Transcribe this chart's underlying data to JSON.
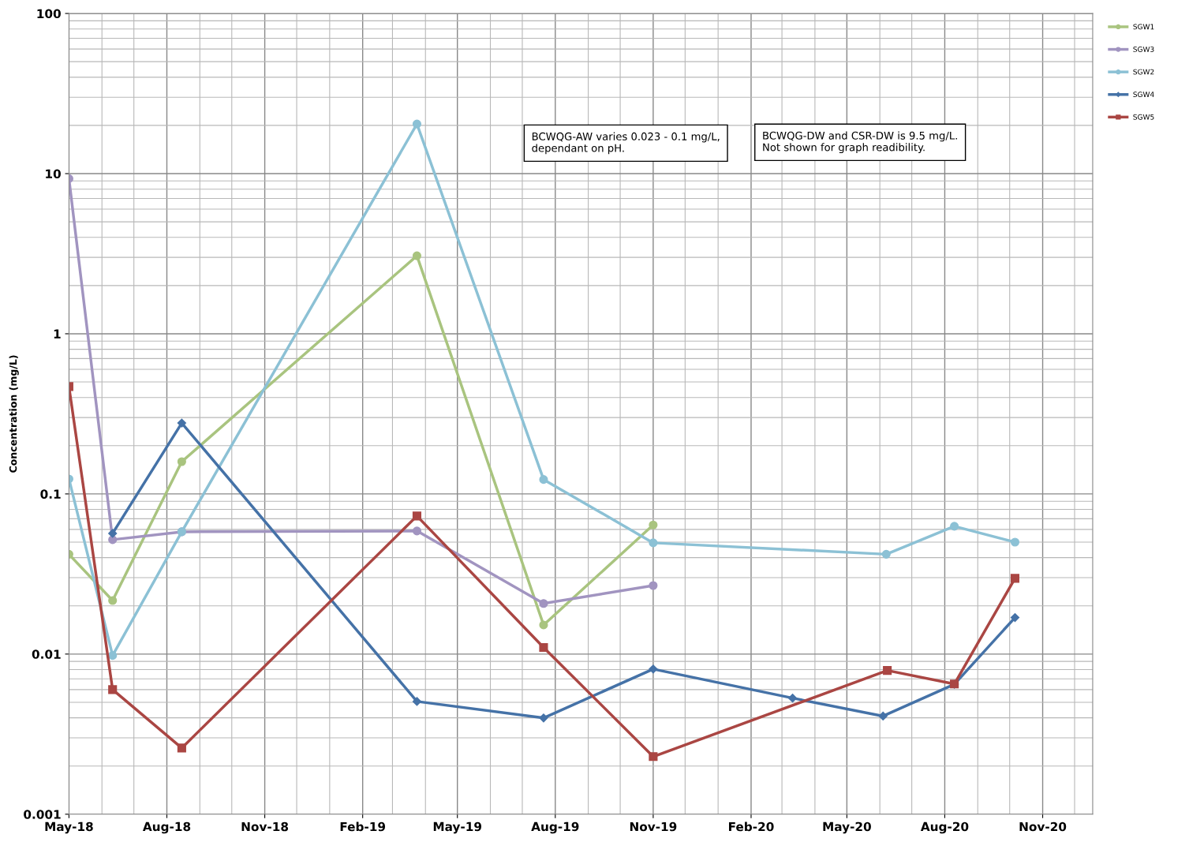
{
  "chart_data": {
    "type": "line",
    "ylabel": "Concentration (mg/L)",
    "log": "y",
    "grid": true,
    "legend": "top right",
    "ylim": [
      0.001,
      100
    ],
    "yticks": [
      0.001,
      0.01,
      0.1,
      1,
      10,
      100
    ],
    "xlim": [
      "2018-05-01",
      "2020-12-18"
    ],
    "xticks": [
      {
        "value": "2018-05-01",
        "label": "May-18"
      },
      {
        "value": "2018-08-01",
        "label": "Aug-18"
      },
      {
        "value": "2018-11-01",
        "label": "Nov-18"
      },
      {
        "value": "2019-02-01",
        "label": "Feb-19"
      },
      {
        "value": "2019-05-01",
        "label": "May-19"
      },
      {
        "value": "2019-08-01",
        "label": "Aug-19"
      },
      {
        "value": "2019-11-01",
        "label": "Nov-19"
      },
      {
        "value": "2020-02-01",
        "label": "Feb-20"
      },
      {
        "value": "2020-05-01",
        "label": "May-20"
      },
      {
        "value": "2020-08-01",
        "label": "Aug-20"
      },
      {
        "value": "2020-11-01",
        "label": "Nov-20"
      }
    ],
    "annotations": [
      "BCWQG-AW varies 0.023 - 0.1 mg/L, dependant on pH.",
      "BCWQG-DW and CSR-DW is 9.5 mg/L. Not shown for graph readibility."
    ],
    "series": [
      {
        "name": "SGW1",
        "color": "#a9c47f",
        "marker": "circle",
        "x": [
          "2018-05-01",
          "2018-06-11",
          "2018-08-15",
          "2019-03-24",
          "2019-07-21",
          "2019-11-01"
        ],
        "values": [
          0.042,
          0.0216,
          0.159,
          3.07,
          0.0152,
          0.064
        ]
      },
      {
        "name": "SGW3",
        "color": "#a194c0",
        "marker": "circle",
        "x": [
          "2018-05-01",
          "2018-06-11",
          "2018-08-15",
          "2019-03-24",
          "2019-07-21",
          "2019-11-01"
        ],
        "values": [
          9.3,
          0.0518,
          0.058,
          0.0587,
          0.0207,
          0.0268
        ]
      },
      {
        "name": "SGW2",
        "color": "#8cc1d5",
        "marker": "circle",
        "x": [
          "2018-05-01",
          "2018-06-11",
          "2018-08-15",
          "2019-03-24",
          "2019-07-21",
          "2019-11-01",
          "2020-06-07",
          "2020-08-10",
          "2020-10-06"
        ],
        "values": [
          0.124,
          0.0098,
          0.058,
          20.4,
          0.123,
          0.0495,
          0.042,
          0.0628,
          0.05
        ]
      },
      {
        "name": "SGW4",
        "color": "#4572a7",
        "marker": "diamond",
        "x": [
          "2018-06-11",
          "2018-08-15",
          "2019-03-24",
          "2019-07-21",
          "2019-11-01",
          "2020-03-11",
          "2020-06-04",
          "2020-08-10",
          "2020-10-06"
        ],
        "values": [
          0.0567,
          0.277,
          0.00506,
          0.00399,
          0.00806,
          0.00531,
          0.0041,
          0.00648,
          0.0169
        ]
      },
      {
        "name": "SGW5",
        "color": "#aa4643",
        "marker": "square",
        "x": [
          "2018-05-01",
          "2018-06-11",
          "2018-08-15",
          "2019-03-24",
          "2019-07-21",
          "2019-11-01",
          "2020-06-08",
          "2020-08-10",
          "2020-10-06"
        ],
        "values": [
          0.468,
          0.006,
          0.00259,
          0.0728,
          0.011,
          0.00229,
          0.0079,
          0.0065,
          0.0297
        ]
      }
    ]
  }
}
